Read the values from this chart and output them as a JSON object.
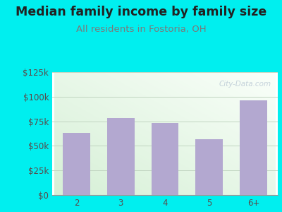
{
  "title": "Median family income by family size",
  "subtitle": "All residents in Fostoria, OH",
  "categories": [
    "2",
    "3",
    "4",
    "5",
    "6+"
  ],
  "values": [
    63000,
    78000,
    73000,
    57000,
    96000
  ],
  "bar_color": "#b3a8d0",
  "background_color": "#00efef",
  "plot_bg_color_topleft": "#d8f0d8",
  "plot_bg_color_white": "#f8fff8",
  "title_color": "#222222",
  "subtitle_color": "#7a7a7a",
  "axis_label_color": "#5a4a4a",
  "ylim": [
    0,
    125000
  ],
  "yticks": [
    0,
    25000,
    50000,
    75000,
    100000,
    125000
  ],
  "ytick_labels": [
    "$0",
    "$25k",
    "$50k",
    "$75k",
    "$100k",
    "$125k"
  ],
  "title_fontsize": 12.5,
  "subtitle_fontsize": 9.5,
  "tick_fontsize": 8.5,
  "watermark": "City-Data.com"
}
